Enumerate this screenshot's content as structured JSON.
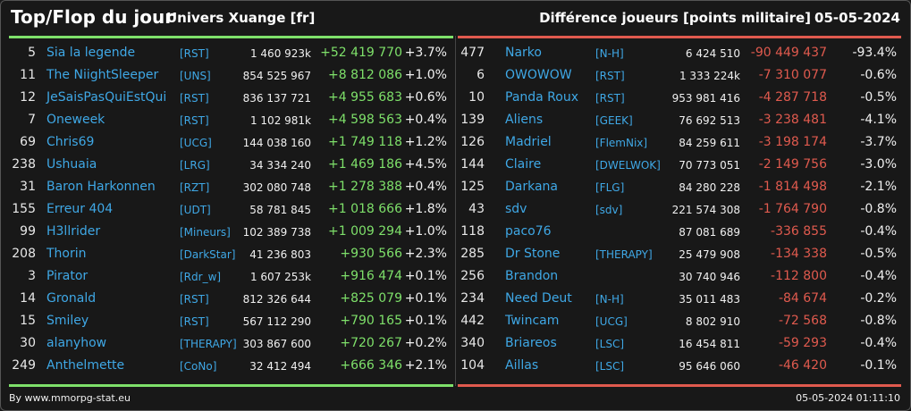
{
  "header": {
    "title": "Top/Flop du jour",
    "server": "Univers Xuange [fr]",
    "metric": "Différence joueurs [points militaire]",
    "date": "05-05-2024"
  },
  "colors": {
    "accent_top": "#7ee06a",
    "accent_flop": "#e05a4e",
    "name": "#3fa8e6"
  },
  "top": [
    {
      "rank": "5",
      "name": "Sia la legende",
      "alliance": "[RST]",
      "points": "1 460 923k",
      "diff": "+52 419 770",
      "pct": "+3.7%"
    },
    {
      "rank": "11",
      "name": "The NiightSleeper",
      "alliance": "[UNS]",
      "points": "854 525 967",
      "diff": "+8 812 086",
      "pct": "+1.0%"
    },
    {
      "rank": "12",
      "name": "JeSaisPasQuiEstQui",
      "alliance": "[RST]",
      "points": "836 137 721",
      "diff": "+4 955 683",
      "pct": "+0.6%"
    },
    {
      "rank": "7",
      "name": "Oneweek",
      "alliance": "[RST]",
      "points": "1 102 981k",
      "diff": "+4 598 563",
      "pct": "+0.4%"
    },
    {
      "rank": "69",
      "name": "Chris69",
      "alliance": "[UCG]",
      "points": "144 038 160",
      "diff": "+1 749 118",
      "pct": "+1.2%"
    },
    {
      "rank": "238",
      "name": "Ushuaia",
      "alliance": "[LRG]",
      "points": "34 334 240",
      "diff": "+1 469 186",
      "pct": "+4.5%"
    },
    {
      "rank": "31",
      "name": "Baron Harkonnen",
      "alliance": "[RZT]",
      "points": "302 080 748",
      "diff": "+1 278 388",
      "pct": "+0.4%"
    },
    {
      "rank": "155",
      "name": "Erreur 404",
      "alliance": "[UDT]",
      "points": "58 781 845",
      "diff": "+1 018 666",
      "pct": "+1.8%"
    },
    {
      "rank": "99",
      "name": "H3llrider",
      "alliance": "[Mineurs]",
      "points": "102 389 738",
      "diff": "+1 009 294",
      "pct": "+1.0%"
    },
    {
      "rank": "208",
      "name": "Thorin",
      "alliance": "[DarkStar]",
      "points": "41 236 803",
      "diff": "+930 566",
      "pct": "+2.3%"
    },
    {
      "rank": "3",
      "name": "Pirator",
      "alliance": "[Rdr_w]",
      "points": "1 607 253k",
      "diff": "+916 474",
      "pct": "+0.1%"
    },
    {
      "rank": "14",
      "name": "Gronald",
      "alliance": "[RST]",
      "points": "812 326 644",
      "diff": "+825 079",
      "pct": "+0.1%"
    },
    {
      "rank": "15",
      "name": "Smiley",
      "alliance": "[RST]",
      "points": "567 112 290",
      "diff": "+790 165",
      "pct": "+0.1%"
    },
    {
      "rank": "30",
      "name": "alanyhow",
      "alliance": "[THERAPY]",
      "points": "303 867 600",
      "diff": "+720 267",
      "pct": "+0.2%"
    },
    {
      "rank": "249",
      "name": "Anthelmette",
      "alliance": "[CoNo]",
      "points": "32 412 494",
      "diff": "+666 346",
      "pct": "+2.1%"
    }
  ],
  "flop": [
    {
      "rank": "477",
      "name": "Narko",
      "alliance": "[N-H]",
      "points": "6 424 510",
      "diff": "-90 449 437",
      "pct": "-93.4%"
    },
    {
      "rank": "6",
      "name": "OWOWOW",
      "alliance": "[RST]",
      "points": "1 333 224k",
      "diff": "-7 310 077",
      "pct": "-0.6%"
    },
    {
      "rank": "10",
      "name": "Panda Roux",
      "alliance": "[RST]",
      "points": "953 981 416",
      "diff": "-4 287 718",
      "pct": "-0.5%"
    },
    {
      "rank": "139",
      "name": "Aliens",
      "alliance": "[GEEK]",
      "points": "76 692 513",
      "diff": "-3 238 481",
      "pct": "-4.1%"
    },
    {
      "rank": "126",
      "name": "Madriel",
      "alliance": "[FlemNix]",
      "points": "84 259 611",
      "diff": "-3 198 174",
      "pct": "-3.7%"
    },
    {
      "rank": "144",
      "name": "Claire",
      "alliance": "[DWELWOK]",
      "points": "70 773 051",
      "diff": "-2 149 756",
      "pct": "-3.0%"
    },
    {
      "rank": "125",
      "name": "Darkana",
      "alliance": "[FLG]",
      "points": "84 280 228",
      "diff": "-1 814 498",
      "pct": "-2.1%"
    },
    {
      "rank": "43",
      "name": "sdv",
      "alliance": "[sdv]",
      "points": "221 574 308",
      "diff": "-1 764 790",
      "pct": "-0.8%"
    },
    {
      "rank": "118",
      "name": "paco76",
      "alliance": "",
      "points": "87 081 689",
      "diff": "-336 855",
      "pct": "-0.4%"
    },
    {
      "rank": "285",
      "name": "Dr Stone",
      "alliance": "[THERAPY]",
      "points": "25 479 908",
      "diff": "-134 338",
      "pct": "-0.5%"
    },
    {
      "rank": "256",
      "name": "Brandon",
      "alliance": "",
      "points": "30 740 946",
      "diff": "-112 800",
      "pct": "-0.4%"
    },
    {
      "rank": "234",
      "name": "Need Deut",
      "alliance": "[N-H]",
      "points": "35 011 483",
      "diff": "-84 674",
      "pct": "-0.2%"
    },
    {
      "rank": "442",
      "name": "Twincam",
      "alliance": "[UCG]",
      "points": "8 802 910",
      "diff": "-72 568",
      "pct": "-0.8%"
    },
    {
      "rank": "340",
      "name": "Briareos",
      "alliance": "[LSC]",
      "points": "16 454 811",
      "diff": "-59 293",
      "pct": "-0.4%"
    },
    {
      "rank": "104",
      "name": "Aillas",
      "alliance": "[LSC]",
      "points": "95 646 060",
      "diff": "-46 420",
      "pct": "-0.1%"
    }
  ],
  "footer": {
    "credit": "By www.mmorpg-stat.eu",
    "timestamp": "05-05-2024 01:11:10"
  }
}
